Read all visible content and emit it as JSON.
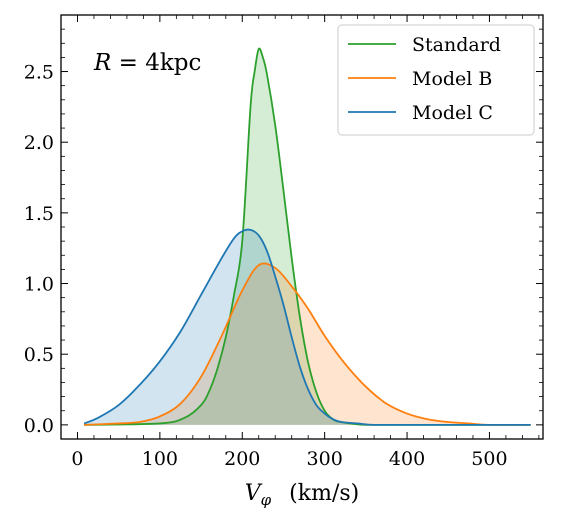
{
  "chart_data": {
    "type": "area",
    "xlabel": "V_φ (km/s)",
    "xlabel_main": "V",
    "xlabel_sub": "φ",
    "xlabel_unit": "(km/s)",
    "ylabel": "",
    "xlim": [
      -20,
      565
    ],
    "ylim": [
      -0.1,
      2.9
    ],
    "xticks": [
      0,
      100,
      200,
      300,
      400,
      500
    ],
    "xtick_labels": [
      "0",
      "100",
      "200",
      "300",
      "400",
      "500"
    ],
    "yticks": [
      0.0,
      0.5,
      1.0,
      1.5,
      2.0,
      2.5
    ],
    "ytick_labels": [
      "0.0",
      "0.5",
      "1.0",
      "1.5",
      "2.0",
      "2.5"
    ],
    "annotation": {
      "italic": "R",
      "rest": " = 4kpc"
    },
    "legend_position": "top-right",
    "grid": false,
    "series": [
      {
        "name": "Standard",
        "color": "#2ca02c",
        "x": [
          8,
          100,
          130,
          150,
          160,
          170,
          180,
          190,
          200,
          210,
          215,
          220,
          225,
          230,
          240,
          250,
          260,
          270,
          280,
          290,
          300,
          310,
          320,
          350,
          400,
          550
        ],
        "y": [
          0.0,
          0.01,
          0.05,
          0.14,
          0.24,
          0.4,
          0.62,
          0.92,
          1.3,
          2.25,
          2.5,
          2.66,
          2.6,
          2.48,
          2.12,
          1.66,
          1.18,
          0.76,
          0.44,
          0.23,
          0.1,
          0.04,
          0.02,
          0.0,
          0.0,
          0.0
        ]
      },
      {
        "name": "Model B",
        "color": "#ff7f0e",
        "x": [
          8,
          50,
          75,
          100,
          125,
          150,
          175,
          200,
          220,
          240,
          260,
          280,
          300,
          325,
          350,
          375,
          400,
          425,
          450,
          475,
          500,
          550
        ],
        "y": [
          0.0,
          0.01,
          0.02,
          0.06,
          0.15,
          0.34,
          0.63,
          0.95,
          1.13,
          1.11,
          0.98,
          0.82,
          0.63,
          0.43,
          0.27,
          0.15,
          0.08,
          0.04,
          0.02,
          0.01,
          0.0,
          0.0
        ]
      },
      {
        "name": "Model C",
        "color": "#1f77b4",
        "x": [
          8,
          25,
          50,
          75,
          100,
          125,
          150,
          175,
          190,
          200,
          210,
          220,
          230,
          240,
          250,
          260,
          270,
          280,
          290,
          300,
          310,
          320,
          340,
          360,
          400,
          550
        ],
        "y": [
          0.01,
          0.05,
          0.14,
          0.28,
          0.45,
          0.66,
          0.92,
          1.18,
          1.32,
          1.37,
          1.38,
          1.34,
          1.23,
          1.05,
          0.85,
          0.62,
          0.41,
          0.25,
          0.14,
          0.08,
          0.04,
          0.02,
          0.01,
          0.0,
          0.0,
          0.0
        ]
      }
    ]
  }
}
